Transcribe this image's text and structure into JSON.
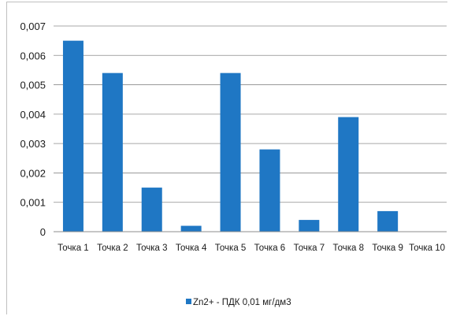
{
  "chart_data": {
    "type": "bar",
    "categories": [
      "Точка 1",
      "Точка 2",
      "Точка 3",
      "Точка 4",
      "Точка 5",
      "Точка 6",
      "Точка 7",
      "Точка 8",
      "Точка 9",
      "Точка 10"
    ],
    "series": [
      {
        "name": "Zn2+ - ПДК 0,01 мг/дм3",
        "values": [
          0.0065,
          0.0054,
          0.0015,
          0.0002,
          0.0054,
          0.0028,
          0.0004,
          0.0039,
          0.0007,
          0
        ],
        "color": "#1f77c4"
      }
    ],
    "ylim": [
      0,
      0.007
    ],
    "yticks": [
      "0",
      "0,001",
      "0,002",
      "0,003",
      "0,004",
      "0,005",
      "0,006",
      "0,007"
    ],
    "grid": true,
    "legend": "bottom"
  }
}
